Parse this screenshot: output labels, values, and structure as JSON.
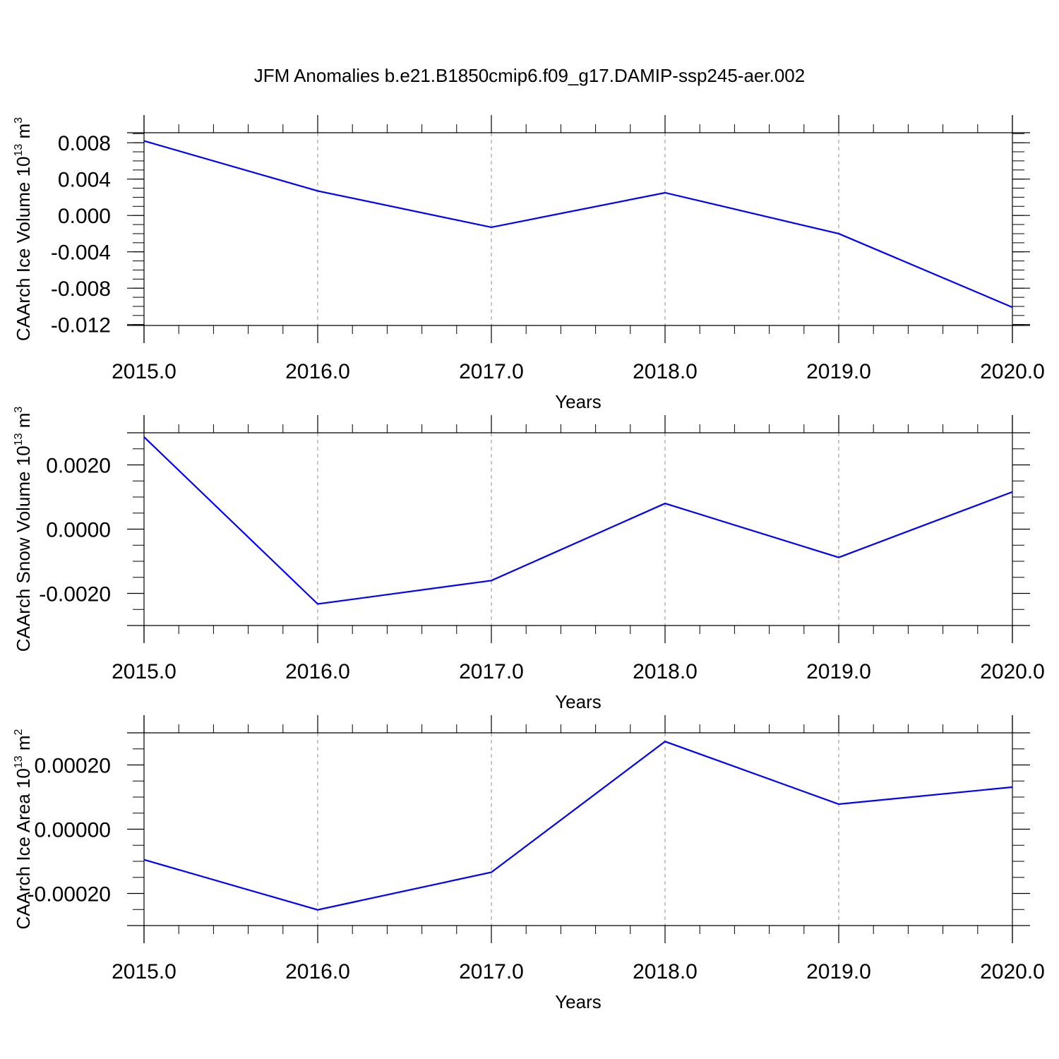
{
  "title": "JFM Anomalies b.e21.B1850cmip6.f09_g17.DAMIP-ssp245-aer.002",
  "colors": {
    "line": "#0000ff",
    "axis": "#000000",
    "grid": "#a0a0a0"
  },
  "chart_data": [
    {
      "type": "line",
      "xlabel": "Years",
      "ylabel": {
        "text": "CAArch Ice Volume 10",
        "exp": "13",
        "unit": " m",
        "unit_exp": "3"
      },
      "x": [
        2015,
        2016,
        2017,
        2018,
        2019,
        2020
      ],
      "xticks": [
        "2015.0",
        "2016.0",
        "2017.0",
        "2018.0",
        "2019.0",
        "2020.0"
      ],
      "values": [
        0.0082,
        0.0027,
        -0.0013,
        0.0025,
        -0.002,
        -0.0101
      ],
      "ylim": [
        -0.0121,
        0.0091
      ],
      "yticks": [
        0.008,
        0.004,
        0.0,
        -0.004,
        -0.008,
        -0.012
      ],
      "yticklabels": [
        "0.008",
        "0.004",
        "0.000",
        "-0.004",
        "-0.008",
        "-0.012"
      ],
      "yminor": 0.001,
      "grid": "vertical dashed"
    },
    {
      "type": "line",
      "xlabel": "Years",
      "ylabel": {
        "text": "CAArch Snow Volume 10",
        "exp": "13",
        "unit": " m",
        "unit_exp": "3"
      },
      "x": [
        2015,
        2016,
        2017,
        2018,
        2019,
        2020
      ],
      "xticks": [
        "2015.0",
        "2016.0",
        "2017.0",
        "2018.0",
        "2019.0",
        "2020.0"
      ],
      "values": [
        0.00287,
        -0.00233,
        -0.0016,
        0.0008,
        -0.00088,
        0.00116
      ],
      "ylim": [
        -0.003,
        0.003
      ],
      "yticks": [
        0.002,
        0.0,
        -0.002
      ],
      "yticklabels": [
        "0.0020",
        "0.0000",
        "-0.0020"
      ],
      "yminor": 0.0005,
      "grid": "vertical dashed"
    },
    {
      "type": "line",
      "xlabel": "Years",
      "ylabel": {
        "text": "CAArch Ice Area 10",
        "exp": "13",
        "unit": " m",
        "unit_exp": "2"
      },
      "x": [
        2015,
        2016,
        2017,
        2018,
        2019,
        2020
      ],
      "xticks": [
        "2015.0",
        "2016.0",
        "2017.0",
        "2018.0",
        "2019.0",
        "2020.0"
      ],
      "values": [
        -9.5e-05,
        -0.000251,
        -0.000134,
        0.000273,
        7.8e-05,
        0.000131
      ],
      "ylim": [
        -0.0003,
        0.0003
      ],
      "yticks": [
        0.0002,
        0.0,
        -0.0002
      ],
      "yticklabels": [
        "0.00020",
        "0.00000",
        "-0.00020"
      ],
      "yminor": 5e-05,
      "grid": "vertical dashed"
    }
  ]
}
